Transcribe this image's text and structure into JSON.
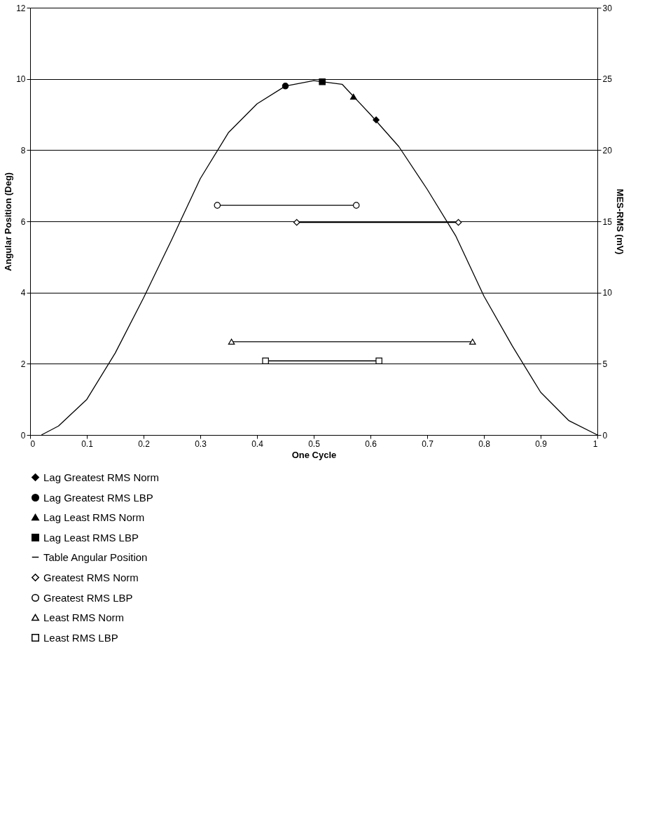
{
  "chart_data": {
    "type": "line",
    "xlabel": "One Cycle",
    "ylabel": "Angular Position (Deg)",
    "y2label": "MES-RMS (mV)",
    "xlim": [
      0,
      1
    ],
    "xticks": [
      0,
      0.1,
      0.2,
      0.3,
      0.4,
      0.5,
      0.6,
      0.7,
      0.8,
      0.9,
      1
    ],
    "ylim": [
      0,
      12
    ],
    "yticks": [
      0,
      2,
      4,
      6,
      8,
      10,
      12
    ],
    "y2lim": [
      0,
      30
    ],
    "y2ticks": [
      0,
      5,
      10,
      15,
      20,
      25,
      30
    ],
    "grid": "y",
    "legend": "bottom",
    "series": [
      {
        "name": "Lag Greatest RMS Norm",
        "type": "scatter",
        "marker": "diamond",
        "color": "#000000",
        "x": [
          0.61
        ],
        "values": [
          8.85
        ]
      },
      {
        "name": "Lag Greatest RMS LBP",
        "type": "scatter",
        "marker": "circle",
        "color": "#000000",
        "x": [
          0.45
        ],
        "values": [
          9.8
        ]
      },
      {
        "name": "Lag Least RMS Norm",
        "type": "scatter",
        "marker": "triangle",
        "color": "#000000",
        "x": [
          0.57
        ],
        "values": [
          9.5
        ]
      },
      {
        "name": "Lag Least RMS LBP",
        "type": "scatter",
        "marker": "square",
        "color": "#000000",
        "x": [
          0.515
        ],
        "values": [
          9.92
        ]
      },
      {
        "name": "Table Angular Position",
        "type": "line",
        "marker": "none",
        "color": "#000000",
        "x": [
          0.02,
          0.05,
          0.1,
          0.15,
          0.2,
          0.25,
          0.3,
          0.35,
          0.4,
          0.45,
          0.5,
          0.55,
          0.6,
          0.65,
          0.7,
          0.75,
          0.8,
          0.85,
          0.9,
          0.95,
          1.0
        ],
        "values": [
          0,
          0.25,
          1.0,
          2.3,
          3.85,
          5.5,
          7.2,
          8.5,
          9.3,
          9.8,
          9.95,
          9.85,
          9.0,
          8.1,
          6.9,
          5.6,
          3.9,
          2.5,
          1.2,
          0.4,
          0
        ]
      },
      {
        "name": "Greatest RMS Norm",
        "type": "line",
        "marker": "diamond",
        "color": "#000000",
        "x": [
          0.47,
          0.755
        ],
        "values": [
          5.97,
          5.97
        ]
      },
      {
        "name": "Greatest RMS LBP",
        "type": "line",
        "marker": "circle",
        "color": "#000000",
        "x": [
          0.33,
          0.575
        ],
        "values": [
          6.45,
          6.45
        ]
      },
      {
        "name": "Least RMS Norm",
        "type": "line",
        "marker": "triangle",
        "color": "#000000",
        "x": [
          0.355,
          0.78
        ],
        "values": [
          2.62,
          2.62
        ]
      },
      {
        "name": "Least RMS LBP",
        "type": "line",
        "marker": "square",
        "color": "#000000",
        "x": [
          0.415,
          0.615
        ],
        "values": [
          2.08,
          2.08
        ]
      }
    ]
  }
}
